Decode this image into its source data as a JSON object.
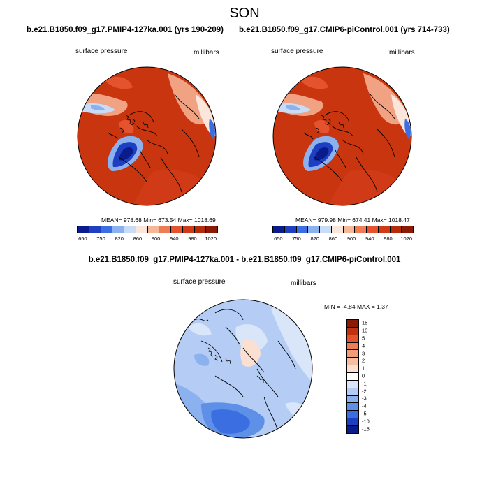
{
  "figure": {
    "season": "SON",
    "left_panel": {
      "title": "b.e21.B1850.f09_g17.PMIP4-127ka.001 (yrs 190-209)",
      "variable": "surface pressure",
      "units": "millibars",
      "stats": "MEAN= 978.68  Min= 673.54  Max= 1018.69"
    },
    "right_panel": {
      "title": "b.e21.B1850.f09_g17.CMIP6-piControl.001 (yrs 714-733)",
      "variable": "surface pressure",
      "units": "millibars",
      "stats": "MEAN= 979.98  Min= 674.41  Max= 1018.47"
    },
    "diff_panel": {
      "title": "b.e21.B1850.f09_g17.PMIP4-127ka.001 - b.e21.B1850.f09_g17.CMIP6-piControl.001",
      "variable": "surface pressure",
      "units": "millibars",
      "stats": "MIN =  -4.84 MAX =   1.37"
    }
  },
  "colorbars": {
    "abs_labels": [
      "650",
      "750",
      "820",
      "860",
      "900",
      "940",
      "980",
      "1020"
    ],
    "abs_colors": [
      "#0a1c8c",
      "#1f3fc2",
      "#3b6ee0",
      "#8bb1ef",
      "#c9dcf7",
      "#fbe6dc",
      "#f6b797",
      "#ee7d55",
      "#e4532d",
      "#d03a16",
      "#b52c0d",
      "#8a1a06"
    ],
    "diff_labels": [
      "15",
      "10",
      "5",
      "4",
      "3",
      "2",
      "1",
      "0",
      "-1",
      "-2",
      "-3",
      "-4",
      "-5",
      "-10",
      "-15"
    ],
    "diff_colors": [
      "#8a1a06",
      "#c2310f",
      "#e4532d",
      "#ee7d55",
      "#f49c77",
      "#f7bd9e",
      "#fbe0d1",
      "#ffffff",
      "#d9e6f9",
      "#b5cdf4",
      "#8bb1ef",
      "#5f90e8",
      "#3b6ee0",
      "#1f3fc2",
      "#0a1c8c"
    ]
  }
}
